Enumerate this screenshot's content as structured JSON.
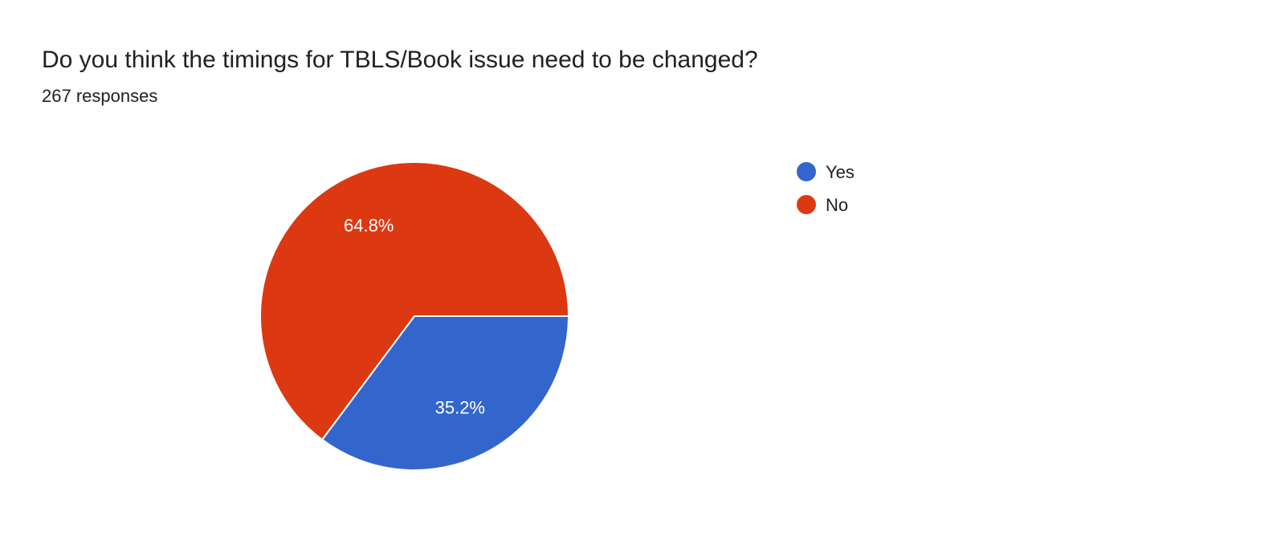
{
  "header": {
    "title": "Do you think the timings for TBLS/Book issue need to be changed?",
    "responses": "267 responses"
  },
  "chart_data": {
    "type": "pie",
    "categories": [
      "Yes",
      "No"
    ],
    "values": [
      35.2,
      64.8
    ],
    "labels": [
      "35.2%",
      "64.8%"
    ],
    "colors": [
      "#3366cc",
      "#dc3912"
    ],
    "legend": "right",
    "start_angle": "3 o'clock, clockwise"
  }
}
